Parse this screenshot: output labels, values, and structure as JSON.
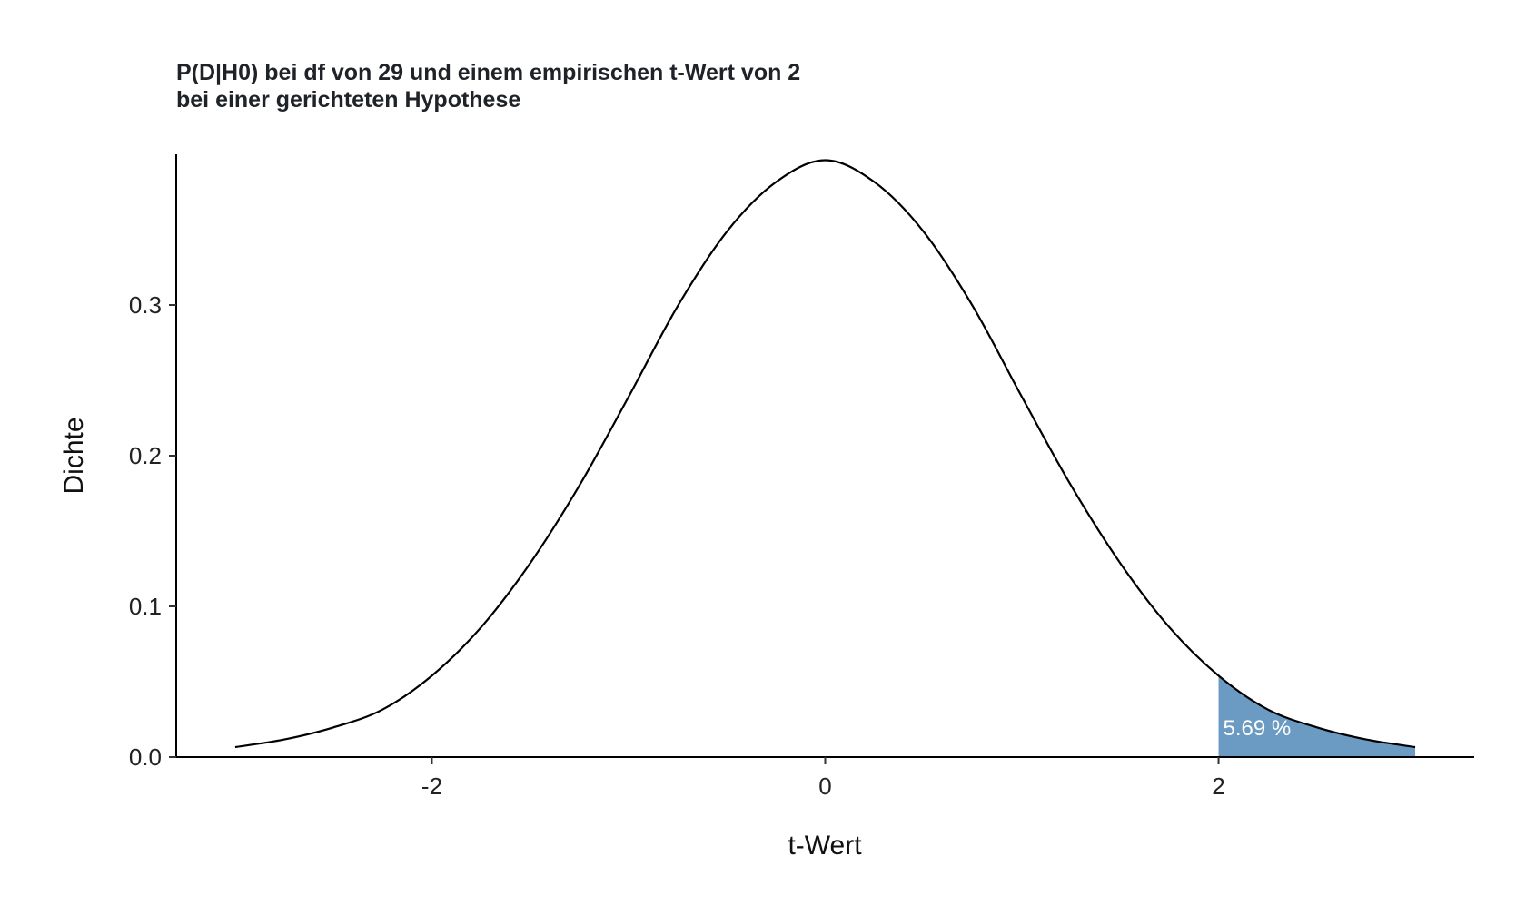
{
  "chart_data": {
    "type": "area",
    "title": "P(D|H0) bei df von 29 und einem empirischen t-Wert von 2",
    "subtitle": "bei einer gerichteten Hypothese",
    "xlabel": "t-Wert",
    "ylabel": "Dichte",
    "xlim": [
      -3.3,
      3.3
    ],
    "ylim": [
      0,
      0.4
    ],
    "x_ticks": [
      -2,
      0,
      2
    ],
    "x_tick_labels": [
      "-2",
      "0",
      "2"
    ],
    "y_ticks": [
      0.0,
      0.1,
      0.2,
      0.3
    ],
    "y_tick_labels": [
      "0.0",
      "0.1",
      "0.2",
      "0.3"
    ],
    "grid": false,
    "series": [
      {
        "x": [
          -3.0,
          -2.75,
          -2.5,
          -2.25,
          -2.0,
          -1.75,
          -1.5,
          -1.25,
          -1.0,
          -0.75,
          -0.5,
          -0.25,
          0.0,
          0.25,
          0.5,
          0.75,
          1.0,
          1.25,
          1.5,
          1.75,
          2.0,
          2.25,
          2.5,
          2.75,
          3.0
        ],
        "y": [
          0.0066,
          0.0117,
          0.0197,
          0.0316,
          0.054,
          0.0861,
          0.1287,
          0.1802,
          0.239,
          0.2993,
          0.3487,
          0.3816,
          0.3961,
          0.3816,
          0.3487,
          0.2993,
          0.239,
          0.1802,
          0.1287,
          0.0861,
          0.054,
          0.0316,
          0.0197,
          0.0117,
          0.0066
        ],
        "color": "#000000"
      }
    ],
    "shaded_region": {
      "from": 2,
      "to": 3,
      "color": "#6b9bc3",
      "label": "5.69 %"
    }
  }
}
